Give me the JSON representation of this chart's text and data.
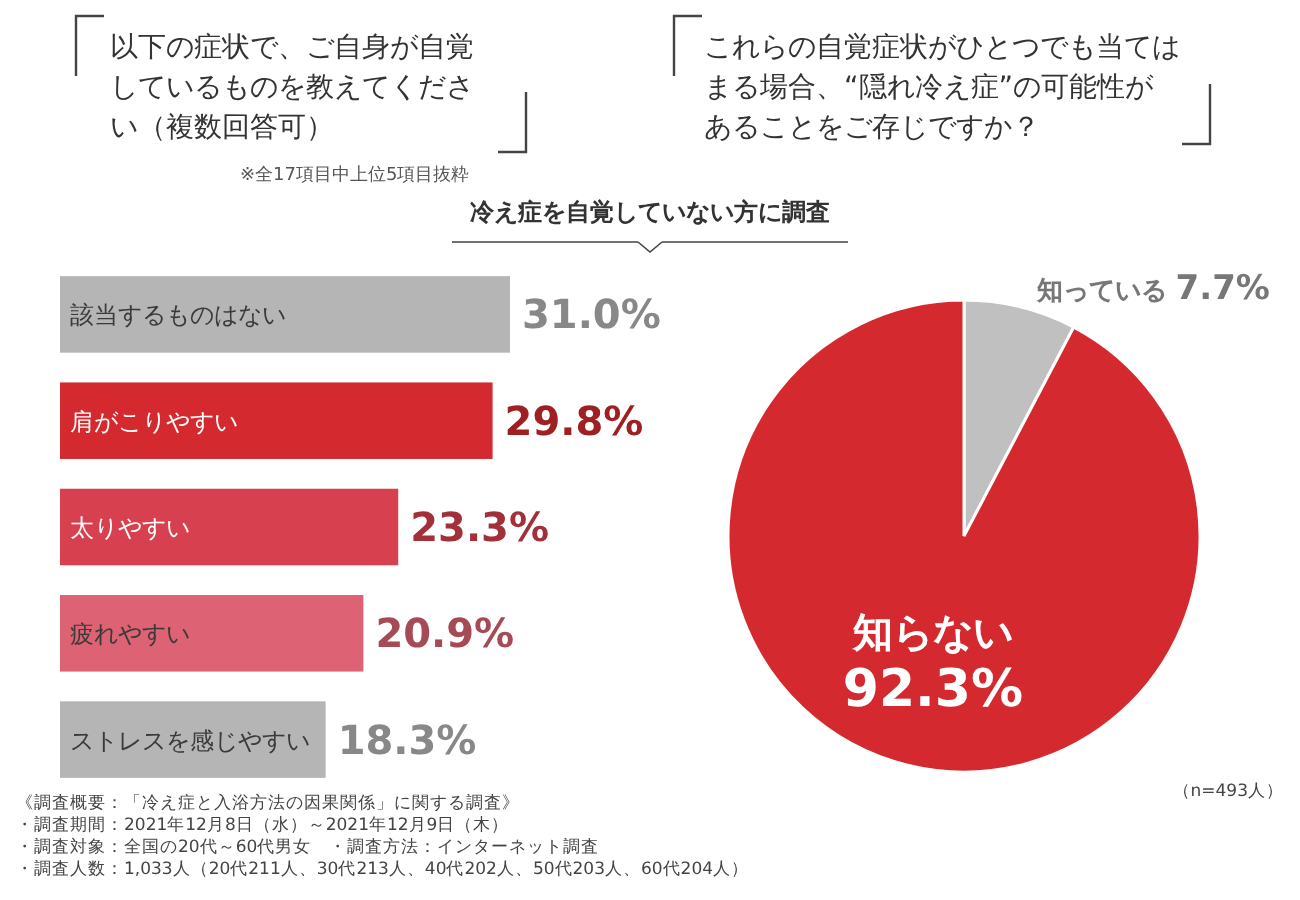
{
  "chart_data": [
    {
      "type": "bar",
      "orientation": "horizontal",
      "title": "以下の症状で、ご自身が自覚しているものを教えてください（複数回答可）",
      "subtitle": "※全17項目中上位5項目抜粋",
      "categories": [
        "該当するものはない",
        "肩がこりやすい",
        "太りやすい",
        "疲れやすい",
        "ストレスを感じやすい"
      ],
      "values": [
        31.0,
        29.8,
        23.3,
        20.9,
        18.3
      ],
      "value_labels": [
        "31.0%",
        "29.8%",
        "23.3%",
        "20.9%",
        "18.3%"
      ],
      "colors": [
        "#b5b5b5",
        "#d42a2f",
        "#d7404f",
        "#dd6273",
        "#b5b5b5"
      ],
      "annotations": [
        "《調査概要：「冷え症と入浴方法の因果関係」に関する調査》",
        "・調査期間：2021年12月8日（水）～2021年12月9日（木）",
        "・調査対象：全国の20代～60代男女　・調査方法：インターネット調査",
        "・調査人数：1,033人（20代211人、30代213人、40代202人、50代203人、60代204人）"
      ]
    },
    {
      "type": "pie",
      "title": "これらの自覚症状がひとつでも当てはまる場合、“隠れ冷え症”の可能性があることをご存じですか？",
      "subtitle": "冷え症を自覚していない方に調査",
      "categories": [
        "知っている",
        "知らない"
      ],
      "values": [
        7.7,
        92.3
      ],
      "value_labels": [
        "7.7%",
        "92.3%"
      ],
      "colors": [
        "#c0c0c0",
        "#d42a2f"
      ],
      "annotations": [
        "（n=493人）"
      ]
    }
  ]
}
